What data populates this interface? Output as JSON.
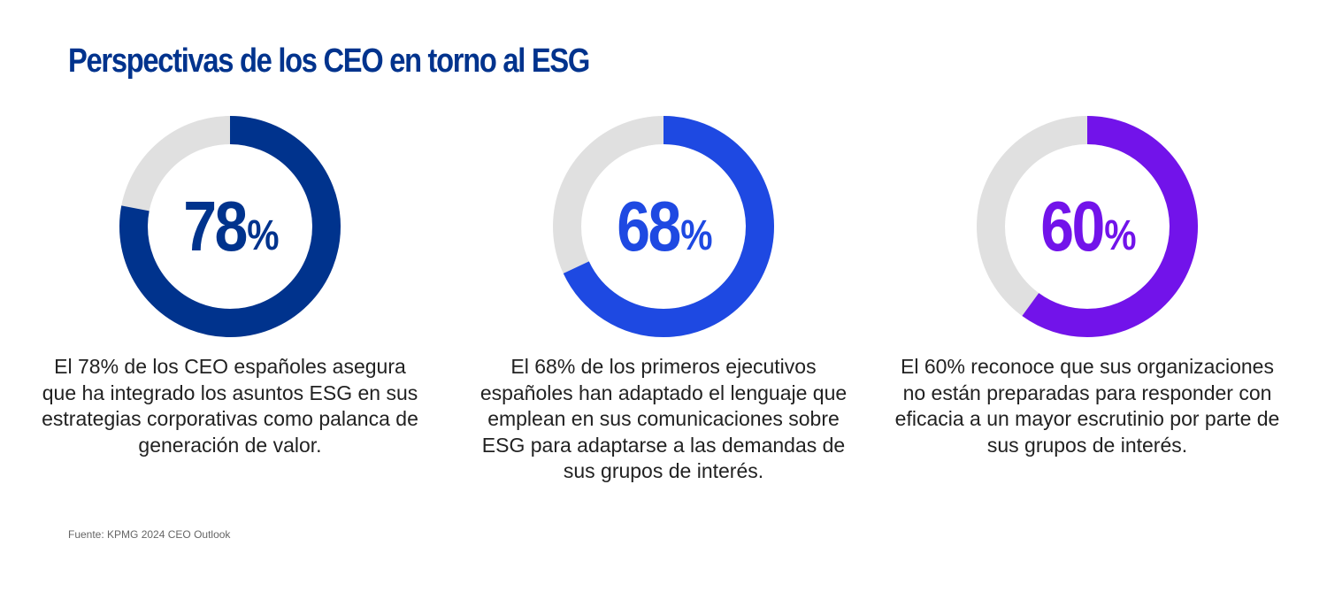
{
  "title": "Perspectivas de los CEO en torno al ESG",
  "source": "Fuente: KPMG 2024 CEO Outlook",
  "colors": {
    "title": "#00338d",
    "track": "#e0e0e0",
    "text": "#222222"
  },
  "chart_data": [
    {
      "type": "pie",
      "variant": "donut",
      "values": [
        78,
        22
      ],
      "value_label": "78",
      "unit": "%",
      "color": "#00338d",
      "description": "El 78% de los CEO españoles asegura que ha integrado los asuntos ESG en sus estrategias corporativas como palanca de generación de valor."
    },
    {
      "type": "pie",
      "variant": "donut",
      "values": [
        68,
        32
      ],
      "value_label": "68",
      "unit": "%",
      "color": "#1e49e2",
      "description": "El 68% de los primeros ejecutivos españoles han adaptado el lenguaje que emplean en sus comunicaciones sobre ESG para adaptarse a las demandas de sus grupos de interés."
    },
    {
      "type": "pie",
      "variant": "donut",
      "values": [
        60,
        40
      ],
      "value_label": "60",
      "unit": "%",
      "color": "#7213ea",
      "description": "El 60% reconoce que sus organizaciones no están preparadas para responder con eficacia a un mayor escrutinio por parte de sus grupos de interés."
    }
  ]
}
